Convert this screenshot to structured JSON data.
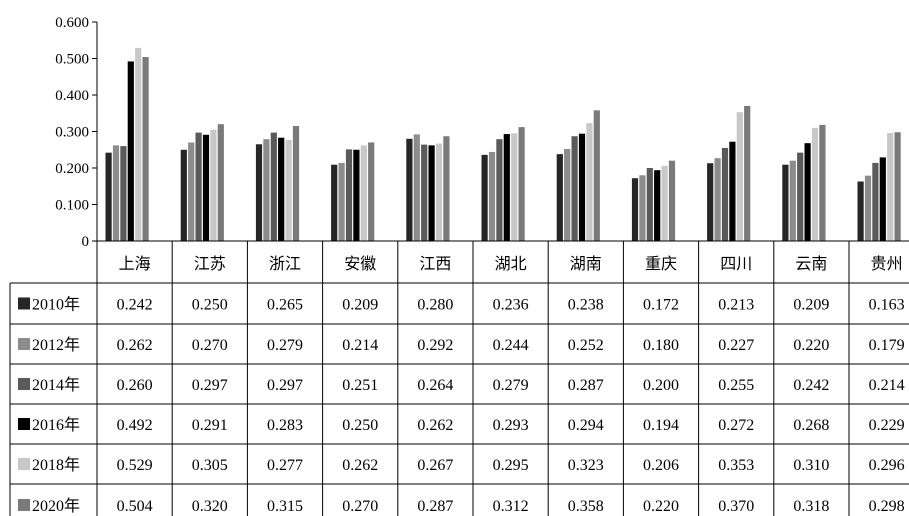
{
  "chart_data": {
    "type": "bar",
    "title": "",
    "xlabel": "",
    "ylabel": "",
    "ylim": [
      0,
      0.6
    ],
    "yticks": [
      "0",
      "0.100",
      "0.200",
      "0.300",
      "0.400",
      "0.500",
      "0.600"
    ],
    "categories": [
      "上海",
      "江苏",
      "浙江",
      "安徽",
      "江西",
      "湖北",
      "湖南",
      "重庆",
      "四川",
      "云南",
      "贵州"
    ],
    "series": [
      {
        "name": "2010年",
        "color": "#262626",
        "values": [
          0.242,
          0.25,
          0.265,
          0.209,
          0.28,
          0.236,
          0.238,
          0.172,
          0.213,
          0.209,
          0.163
        ],
        "labels": [
          "0.242",
          "0.250",
          "0.265",
          "0.209",
          "0.280",
          "0.236",
          "0.238",
          "0.172",
          "0.213",
          "0.209",
          "0.163"
        ]
      },
      {
        "name": "2012年",
        "color": "#8c8c8c",
        "values": [
          0.262,
          0.27,
          0.279,
          0.214,
          0.292,
          0.244,
          0.252,
          0.18,
          0.227,
          0.22,
          0.179
        ],
        "labels": [
          "0.262",
          "0.270",
          "0.279",
          "0.214",
          "0.292",
          "0.244",
          "0.252",
          "0.180",
          "0.227",
          "0.220",
          "0.179"
        ]
      },
      {
        "name": "2014年",
        "color": "#5a5a5a",
        "values": [
          0.26,
          0.297,
          0.297,
          0.251,
          0.264,
          0.279,
          0.287,
          0.2,
          0.255,
          0.242,
          0.214
        ],
        "labels": [
          "0.260",
          "0.297",
          "0.297",
          "0.251",
          "0.264",
          "0.279",
          "0.287",
          "0.200",
          "0.255",
          "0.242",
          "0.214"
        ]
      },
      {
        "name": "2016年",
        "color": "#000000",
        "values": [
          0.492,
          0.291,
          0.283,
          0.25,
          0.262,
          0.293,
          0.294,
          0.194,
          0.272,
          0.268,
          0.229
        ],
        "labels": [
          "0.492",
          "0.291",
          "0.283",
          "0.250",
          "0.262",
          "0.293",
          "0.294",
          "0.194",
          "0.272",
          "0.268",
          "0.229"
        ]
      },
      {
        "name": "2018年",
        "color": "#c8c8c8",
        "values": [
          0.529,
          0.305,
          0.277,
          0.262,
          0.267,
          0.295,
          0.323,
          0.206,
          0.353,
          0.31,
          0.296
        ],
        "labels": [
          "0.529",
          "0.305",
          "0.277",
          "0.262",
          "0.267",
          "0.295",
          "0.323",
          "0.206",
          "0.353",
          "0.310",
          "0.296"
        ]
      },
      {
        "name": "2020年",
        "color": "#7a7a7a",
        "values": [
          0.504,
          0.32,
          0.315,
          0.27,
          0.287,
          0.312,
          0.358,
          0.22,
          0.37,
          0.318,
          0.298
        ],
        "labels": [
          "0.504",
          "0.320",
          "0.315",
          "0.270",
          "0.287",
          "0.312",
          "0.358",
          "0.220",
          "0.370",
          "0.318",
          "0.298"
        ]
      }
    ]
  }
}
